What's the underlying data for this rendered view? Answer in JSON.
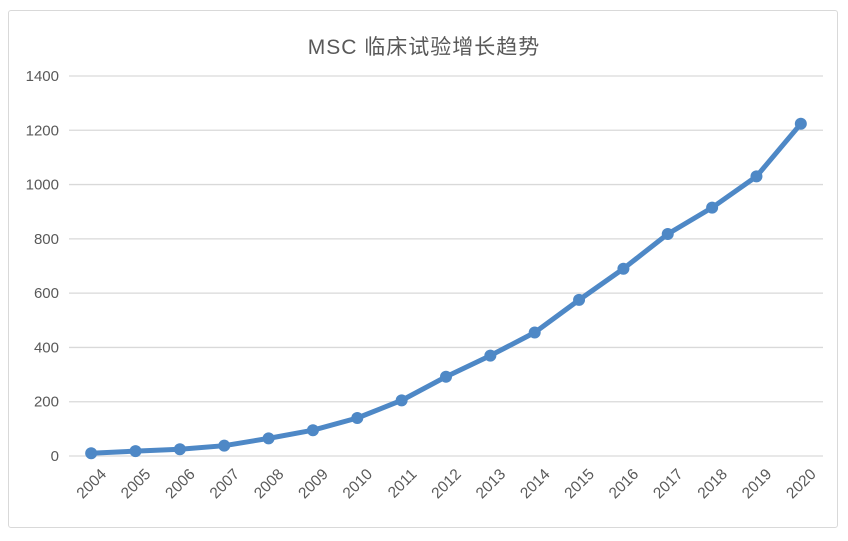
{
  "chart_data": {
    "type": "line",
    "title": "MSC 临床试验增长趋势",
    "xlabel": "",
    "ylabel": "",
    "categories": [
      "2004",
      "2005",
      "2006",
      "2007",
      "2008",
      "2009",
      "2010",
      "2011",
      "2012",
      "2013",
      "2014",
      "2015",
      "2016",
      "2017",
      "2018",
      "2019",
      "2020"
    ],
    "values": [
      10,
      18,
      25,
      38,
      65,
      95,
      140,
      205,
      292,
      370,
      455,
      575,
      690,
      818,
      915,
      1030,
      1224
    ],
    "ylim": [
      0,
      1400
    ],
    "ytick_step": 200,
    "ytick_labels": [
      "0",
      "200",
      "400",
      "600",
      "800",
      "1000",
      "1200",
      "1400"
    ],
    "grid": true,
    "legend_position": "none",
    "marker": "circle",
    "x_label_rotation_deg": -45,
    "colors": {
      "line": "#4e88c6",
      "marker_fill": "#4e88c6",
      "gridline": "#d9d9d9",
      "axis_text": "#595959",
      "title_text": "#595959",
      "frame_border": "#d9d9d9",
      "background": "#ffffff"
    }
  }
}
